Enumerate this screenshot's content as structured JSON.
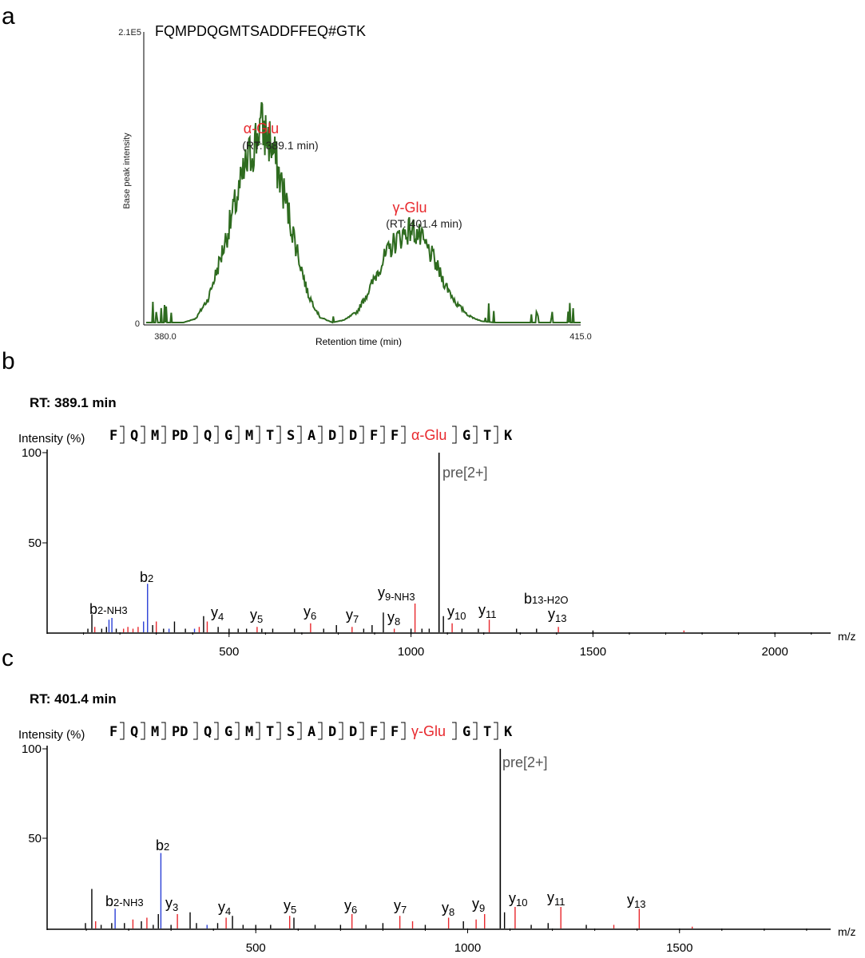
{
  "colors": {
    "trace": "#2e6b1f",
    "red": "#e8282d",
    "blue": "#2a3fd6",
    "black": "#000000",
    "gray": "#555555"
  },
  "panel_a": {
    "letter": "a",
    "peptide": "FQMPDQGMTSADDFFEQ#GTK",
    "ymax_label": "2.1E5",
    "y0_label": "0",
    "ylabel": "Base peak intensity",
    "xlabel": "Retention time (min)",
    "xmin_label": "380.0",
    "xmax_label": "415.0",
    "peak1": {
      "name": "α-Glu",
      "rt": "(RT: 389.1 min)"
    },
    "peak2": {
      "name": "γ-Glu",
      "rt": "(RT: 401.4 min)"
    }
  },
  "panel_b": {
    "letter": "b",
    "rt_title": "RT: 389.1 min",
    "ylabel": "Intensity (%)",
    "residues": [
      "F",
      "Q",
      "M",
      "PD",
      "Q",
      "G",
      "M",
      "T",
      "S",
      "A",
      "D",
      "D",
      "F",
      "F",
      "α-Glu",
      "G",
      "T",
      "K"
    ],
    "modified_index": 14,
    "y100": "100",
    "y50": "50",
    "xlabel": "m/z",
    "x_ticks": [
      "500",
      "1000",
      "1500",
      "2000"
    ],
    "labels": {
      "pre": "pre[2+]",
      "b2": "b",
      "b2s": "2",
      "b2nh3": "b",
      "b2nh3s": "2-NH3",
      "y4": "4",
      "y5": "5",
      "y6": "6",
      "y7": "7",
      "y8": "8",
      "y9": "9-NH3",
      "y10": "10",
      "y11": "11",
      "y13": "13",
      "b13": "13-H2O",
      "y": "y",
      "b": "b"
    }
  },
  "panel_c": {
    "letter": "c",
    "rt_title": "RT: 401.4 min",
    "ylabel": "Intensity (%)",
    "residues": [
      "F",
      "Q",
      "M",
      "PD",
      "Q",
      "G",
      "M",
      "T",
      "S",
      "A",
      "D",
      "D",
      "F",
      "F",
      "γ-Glu",
      "G",
      "T",
      "K"
    ],
    "modified_index": 14,
    "y100": "100",
    "y50": "50",
    "xlabel": "m/z",
    "x_ticks": [
      "500",
      "1000",
      "1500"
    ],
    "labels": {
      "pre": "pre[2+]",
      "b2": "b",
      "b2s": "2",
      "b2nh3": "b",
      "b2nh3s": "2-NH3",
      "y3": "3",
      "y4": "4",
      "y5": "5",
      "y6": "6",
      "y7": "7",
      "y8": "8",
      "y9": "9",
      "y10": "10",
      "y11": "11",
      "y13": "13",
      "y": "y"
    }
  },
  "chart_data": [
    {
      "type": "line",
      "panel": "a",
      "title": "FQMPDQGMTSADDFFEQ#GTK",
      "xlabel": "Retention time (min)",
      "ylabel": "Base peak intensity",
      "xlim": [
        380.0,
        415.0
      ],
      "ylim": [
        0,
        210000
      ],
      "series": [
        {
          "name": "α-Glu",
          "x": [
            380,
            383,
            384,
            385,
            386,
            387,
            388,
            389,
            389.1,
            390,
            391,
            392,
            393,
            394,
            395,
            396,
            400,
            401.4,
            403,
            404,
            405,
            406,
            407,
            410,
            415
          ],
          "y": [
            0,
            0,
            3000,
            18000,
            48000,
            82000,
            115000,
            140000,
            148000,
            135000,
            100000,
            60000,
            22000,
            4000,
            0,
            0,
            0,
            0,
            0,
            0,
            0,
            0,
            0,
            0,
            0
          ]
        },
        {
          "name": "γ-Glu",
          "x": [
            380,
            395,
            396,
            397,
            398,
            399,
            400,
            401,
            401.4,
            402,
            403,
            404,
            405,
            406,
            407,
            408,
            410,
            412,
            415
          ],
          "y": [
            0,
            0,
            2000,
            8000,
            25000,
            45000,
            60000,
            68000,
            70000,
            64000,
            50000,
            30000,
            14000,
            5000,
            1000,
            0,
            0,
            0,
            0
          ]
        }
      ]
    },
    {
      "type": "bar",
      "panel": "b",
      "title": "RT: 389.1 min",
      "xlabel": "m/z",
      "ylabel": "Intensity (%)",
      "xlim": [
        0,
        2150
      ],
      "ylim": [
        0,
        100
      ],
      "peaks": [
        {
          "mz": 112,
          "i": 2,
          "c": "black"
        },
        {
          "mz": 123,
          "i": 10,
          "c": "black"
        },
        {
          "mz": 131,
          "i": 3,
          "c": "red"
        },
        {
          "mz": 150,
          "i": 2,
          "c": "black"
        },
        {
          "mz": 163,
          "i": 3,
          "c": "black"
        },
        {
          "mz": 170,
          "i": 7,
          "c": "blue"
        },
        {
          "mz": 178,
          "i": 8,
          "c": "blue"
        },
        {
          "mz": 190,
          "i": 2,
          "c": "black"
        },
        {
          "mz": 210,
          "i": 2,
          "c": "red"
        },
        {
          "mz": 222,
          "i": 3,
          "c": "red"
        },
        {
          "mz": 236,
          "i": 2,
          "c": "red"
        },
        {
          "mz": 250,
          "i": 3,
          "c": "red"
        },
        {
          "mz": 265,
          "i": 6,
          "c": "blue"
        },
        {
          "mz": 276,
          "i": 27,
          "c": "blue"
        },
        {
          "mz": 290,
          "i": 4,
          "c": "black"
        },
        {
          "mz": 300,
          "i": 6,
          "c": "red"
        },
        {
          "mz": 320,
          "i": 2,
          "c": "black"
        },
        {
          "mz": 335,
          "i": 2,
          "c": "blue"
        },
        {
          "mz": 350,
          "i": 6,
          "c": "black"
        },
        {
          "mz": 380,
          "i": 2,
          "c": "black"
        },
        {
          "mz": 405,
          "i": 2,
          "c": "blue"
        },
        {
          "mz": 418,
          "i": 3,
          "c": "red"
        },
        {
          "mz": 430,
          "i": 9,
          "c": "black"
        },
        {
          "mz": 440,
          "i": 6,
          "c": "red"
        },
        {
          "mz": 470,
          "i": 3,
          "c": "black"
        },
        {
          "mz": 500,
          "i": 2,
          "c": "black"
        },
        {
          "mz": 525,
          "i": 2,
          "c": "black"
        },
        {
          "mz": 548,
          "i": 2,
          "c": "black"
        },
        {
          "mz": 577,
          "i": 3,
          "c": "red"
        },
        {
          "mz": 590,
          "i": 2,
          "c": "black"
        },
        {
          "mz": 620,
          "i": 2,
          "c": "black"
        },
        {
          "mz": 680,
          "i": 2,
          "c": "black"
        },
        {
          "mz": 724,
          "i": 5,
          "c": "red"
        },
        {
          "mz": 760,
          "i": 2,
          "c": "black"
        },
        {
          "mz": 795,
          "i": 4,
          "c": "black"
        },
        {
          "mz": 838,
          "i": 3,
          "c": "red"
        },
        {
          "mz": 870,
          "i": 2,
          "c": "black"
        },
        {
          "mz": 893,
          "i": 4,
          "c": "black"
        },
        {
          "mz": 924,
          "i": 11,
          "c": "black"
        },
        {
          "mz": 954,
          "i": 2,
          "c": "red"
        },
        {
          "mz": 1000,
          "i": 2,
          "c": "black"
        },
        {
          "mz": 1011,
          "i": 16,
          "c": "red"
        },
        {
          "mz": 1030,
          "i": 2,
          "c": "black"
        },
        {
          "mz": 1050,
          "i": 2,
          "c": "black"
        },
        {
          "mz": 1077,
          "i": 100,
          "c": "black"
        },
        {
          "mz": 1089,
          "i": 9,
          "c": "black"
        },
        {
          "mz": 1113,
          "i": 5,
          "c": "red"
        },
        {
          "mz": 1140,
          "i": 2,
          "c": "black"
        },
        {
          "mz": 1185,
          "i": 2,
          "c": "black"
        },
        {
          "mz": 1215,
          "i": 7,
          "c": "red"
        },
        {
          "mz": 1290,
          "i": 2,
          "c": "black"
        },
        {
          "mz": 1345,
          "i": 2,
          "c": "black"
        },
        {
          "mz": 1405,
          "i": 3,
          "c": "red"
        },
        {
          "mz": 1500,
          "i": 1,
          "c": "black"
        },
        {
          "mz": 1750,
          "i": 1,
          "c": "red"
        }
      ]
    },
    {
      "type": "bar",
      "panel": "c",
      "title": "RT: 401.4 min",
      "xlabel": "m/z",
      "ylabel": "Intensity (%)",
      "xlim": [
        0,
        1880
      ],
      "ylim": [
        0,
        100
      ],
      "peaks": [
        {
          "mz": 98,
          "i": 3,
          "c": "black"
        },
        {
          "mz": 113,
          "i": 22,
          "c": "black"
        },
        {
          "mz": 122,
          "i": 4,
          "c": "red"
        },
        {
          "mz": 135,
          "i": 2,
          "c": "black"
        },
        {
          "mz": 160,
          "i": 3,
          "c": "black"
        },
        {
          "mz": 168,
          "i": 11,
          "c": "blue"
        },
        {
          "mz": 190,
          "i": 3,
          "c": "black"
        },
        {
          "mz": 210,
          "i": 5,
          "c": "red"
        },
        {
          "mz": 230,
          "i": 4,
          "c": "black"
        },
        {
          "mz": 243,
          "i": 6,
          "c": "red"
        },
        {
          "mz": 258,
          "i": 2,
          "c": "black"
        },
        {
          "mz": 270,
          "i": 8,
          "c": "black"
        },
        {
          "mz": 276,
          "i": 42,
          "c": "blue"
        },
        {
          "mz": 300,
          "i": 2,
          "c": "black"
        },
        {
          "mz": 315,
          "i": 8,
          "c": "red"
        },
        {
          "mz": 345,
          "i": 9,
          "c": "black"
        },
        {
          "mz": 360,
          "i": 3,
          "c": "black"
        },
        {
          "mz": 385,
          "i": 2,
          "c": "blue"
        },
        {
          "mz": 410,
          "i": 3,
          "c": "black"
        },
        {
          "mz": 430,
          "i": 6,
          "c": "red"
        },
        {
          "mz": 445,
          "i": 7,
          "c": "black"
        },
        {
          "mz": 470,
          "i": 2,
          "c": "black"
        },
        {
          "mz": 500,
          "i": 2,
          "c": "black"
        },
        {
          "mz": 535,
          "i": 2,
          "c": "black"
        },
        {
          "mz": 580,
          "i": 7,
          "c": "red"
        },
        {
          "mz": 590,
          "i": 6,
          "c": "black"
        },
        {
          "mz": 640,
          "i": 2,
          "c": "black"
        },
        {
          "mz": 700,
          "i": 2,
          "c": "black"
        },
        {
          "mz": 727,
          "i": 8,
          "c": "red"
        },
        {
          "mz": 760,
          "i": 2,
          "c": "black"
        },
        {
          "mz": 800,
          "i": 3,
          "c": "black"
        },
        {
          "mz": 840,
          "i": 7,
          "c": "red"
        },
        {
          "mz": 870,
          "i": 4,
          "c": "red"
        },
        {
          "mz": 900,
          "i": 2,
          "c": "black"
        },
        {
          "mz": 955,
          "i": 6,
          "c": "red"
        },
        {
          "mz": 990,
          "i": 4,
          "c": "black"
        },
        {
          "mz": 1020,
          "i": 5,
          "c": "red"
        },
        {
          "mz": 1040,
          "i": 8,
          "c": "red"
        },
        {
          "mz": 1077,
          "i": 100,
          "c": "black"
        },
        {
          "mz": 1087,
          "i": 9,
          "c": "black"
        },
        {
          "mz": 1112,
          "i": 12,
          "c": "red"
        },
        {
          "mz": 1150,
          "i": 2,
          "c": "black"
        },
        {
          "mz": 1190,
          "i": 3,
          "c": "black"
        },
        {
          "mz": 1220,
          "i": 12,
          "c": "red"
        },
        {
          "mz": 1280,
          "i": 2,
          "c": "black"
        },
        {
          "mz": 1345,
          "i": 2,
          "c": "red"
        },
        {
          "mz": 1405,
          "i": 11,
          "c": "red"
        },
        {
          "mz": 1530,
          "i": 1,
          "c": "red"
        }
      ]
    }
  ]
}
